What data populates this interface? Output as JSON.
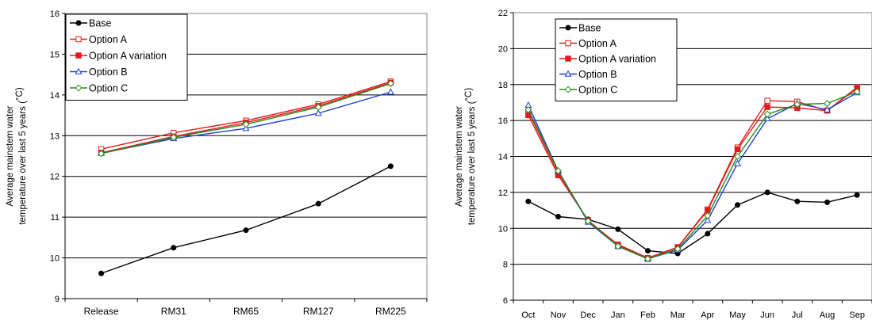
{
  "chart_data": [
    {
      "type": "line",
      "title": "",
      "xlabel": "",
      "ylabel_lines": [
        "Average mainstem water",
        "temperature over last 5 years  (",
        "°C)"
      ],
      "categories": [
        "Release",
        "RM31",
        "RM65",
        "RM127",
        "RM225"
      ],
      "ylim": [
        9,
        16
      ],
      "yticks": [
        9,
        10,
        11,
        12,
        13,
        14,
        15,
        16
      ],
      "grid": true,
      "legend_position": "top-left",
      "series": [
        {
          "name": "Base",
          "color": "#000000",
          "marker": "circle-filled",
          "values": [
            9.62,
            10.25,
            10.68,
            11.33,
            12.25
          ]
        },
        {
          "name": "Option A",
          "color": "#e31a1c",
          "marker": "square-open",
          "values": [
            12.67,
            13.07,
            13.37,
            13.77,
            14.33
          ]
        },
        {
          "name": "Option A variation",
          "color": "#e31a1c",
          "marker": "square-filled",
          "values": [
            12.58,
            12.98,
            13.32,
            13.73,
            14.3
          ]
        },
        {
          "name": "Option B",
          "color": "#1f3fcf",
          "marker": "triangle-open",
          "values": [
            12.57,
            12.93,
            13.18,
            13.55,
            14.07
          ]
        },
        {
          "name": "Option C",
          "color": "#2a8a1a",
          "marker": "diamond-open",
          "values": [
            12.56,
            12.96,
            13.28,
            13.7,
            14.28
          ]
        }
      ]
    },
    {
      "type": "line",
      "title": "",
      "xlabel": "",
      "ylabel_lines": [
        "Average mainstem water",
        "temperature over last 5 years  (",
        "°C)"
      ],
      "categories": [
        "Oct",
        "Nov",
        "Dec",
        "Jan",
        "Feb",
        "Mar",
        "Apr",
        "May",
        "Jun",
        "Jul",
        "Aug",
        "Sep"
      ],
      "ylim": [
        6,
        22
      ],
      "yticks": [
        6,
        8,
        10,
        12,
        14,
        16,
        18,
        20,
        22
      ],
      "grid": true,
      "legend_position": "top-left",
      "series": [
        {
          "name": "Base",
          "color": "#000000",
          "marker": "circle-filled",
          "values": [
            11.5,
            10.65,
            10.5,
            9.95,
            8.75,
            8.6,
            9.7,
            11.3,
            12.0,
            11.5,
            11.45,
            11.85
          ]
        },
        {
          "name": "Option A",
          "color": "#e31a1c",
          "marker": "square-open",
          "values": [
            16.5,
            13.1,
            10.4,
            9.1,
            8.35,
            8.95,
            11.05,
            14.5,
            17.1,
            17.05,
            16.55,
            17.85
          ]
        },
        {
          "name": "Option A variation",
          "color": "#e31a1c",
          "marker": "square-filled",
          "values": [
            16.3,
            12.95,
            10.45,
            9.05,
            8.3,
            8.95,
            11.0,
            14.4,
            16.75,
            16.7,
            16.55,
            17.8
          ]
        },
        {
          "name": "Option B",
          "color": "#1f3fcf",
          "marker": "triangle-open",
          "values": [
            16.85,
            13.2,
            10.35,
            9.0,
            8.3,
            8.8,
            10.45,
            13.6,
            16.1,
            16.95,
            16.6,
            17.55
          ]
        },
        {
          "name": "Option C",
          "color": "#2a8a1a",
          "marker": "diamond-open",
          "values": [
            16.6,
            13.2,
            10.4,
            9.0,
            8.3,
            8.85,
            10.7,
            14.0,
            16.35,
            16.9,
            16.95,
            17.6
          ]
        }
      ]
    }
  ]
}
